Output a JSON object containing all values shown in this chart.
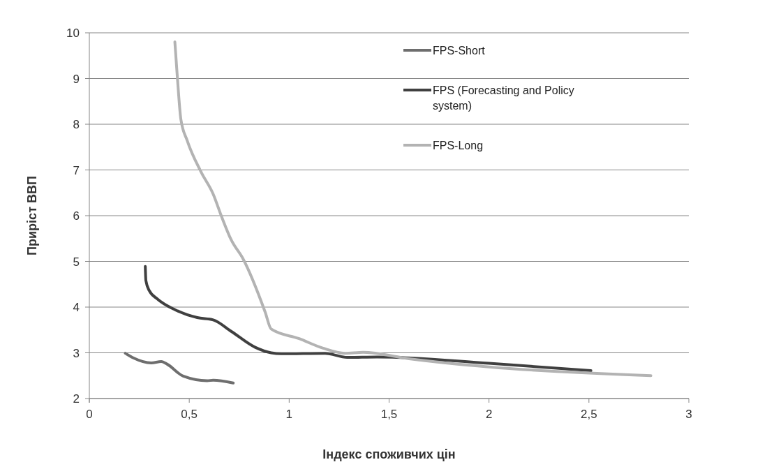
{
  "chart_data": {
    "type": "line",
    "xlabel": "Індекс споживчих цін",
    "ylabel": "Приріст ВВП",
    "xlim": [
      0,
      3
    ],
    "xticks": [
      0,
      {
        "value": 0.5,
        "label": "0,5"
      },
      1,
      {
        "value": 1.5,
        "label": "1,5"
      },
      2,
      {
        "value": 2.5,
        "label": "2,5"
      },
      3
    ],
    "ylim": [
      2,
      10
    ],
    "yticks": [
      2,
      3,
      4,
      5,
      6,
      7,
      8,
      9,
      10
    ],
    "grid": "y",
    "legend": "top",
    "marker": "none",
    "line_style": "solid",
    "series": [
      {
        "name": "FPS-Short",
        "color": "#6e6e6e",
        "x": [
          0.18,
          0.22,
          0.31,
          0.36,
          0.39,
          0.47,
          0.59,
          0.62,
          0.72
        ],
        "values": [
          2.99,
          2.89,
          2.78,
          2.81,
          2.75,
          2.49,
          2.39,
          2.4,
          2.34
        ]
      },
      {
        "name": "FPS (Forecasting and Policy system)",
        "color": "#404040",
        "x": [
          0.28,
          0.283,
          0.3,
          0.34,
          0.43,
          0.54,
          0.62,
          0.71,
          0.83,
          0.91,
          0.96,
          1.18,
          1.29,
          1.44,
          2.0,
          2.51
        ],
        "values": [
          4.89,
          4.58,
          4.36,
          4.18,
          3.94,
          3.77,
          3.72,
          3.47,
          3.12,
          3.0,
          2.98,
          2.99,
          2.9,
          2.91,
          2.77,
          2.61
        ]
      },
      {
        "name": "FPS-Long",
        "color": "#b3b3b3",
        "x": [
          0.428,
          0.44,
          0.458,
          0.49,
          0.56,
          0.62,
          0.66,
          0.71,
          0.77,
          0.88,
          0.91,
          1.05,
          1.17,
          1.28,
          1.37,
          1.6,
          2.0,
          2.81
        ],
        "values": [
          9.8,
          9.06,
          8.11,
          7.64,
          6.95,
          6.47,
          6.0,
          5.47,
          5.05,
          3.89,
          3.52,
          3.31,
          3.1,
          2.99,
          3.01,
          2.87,
          2.69,
          2.5
        ]
      }
    ]
  }
}
